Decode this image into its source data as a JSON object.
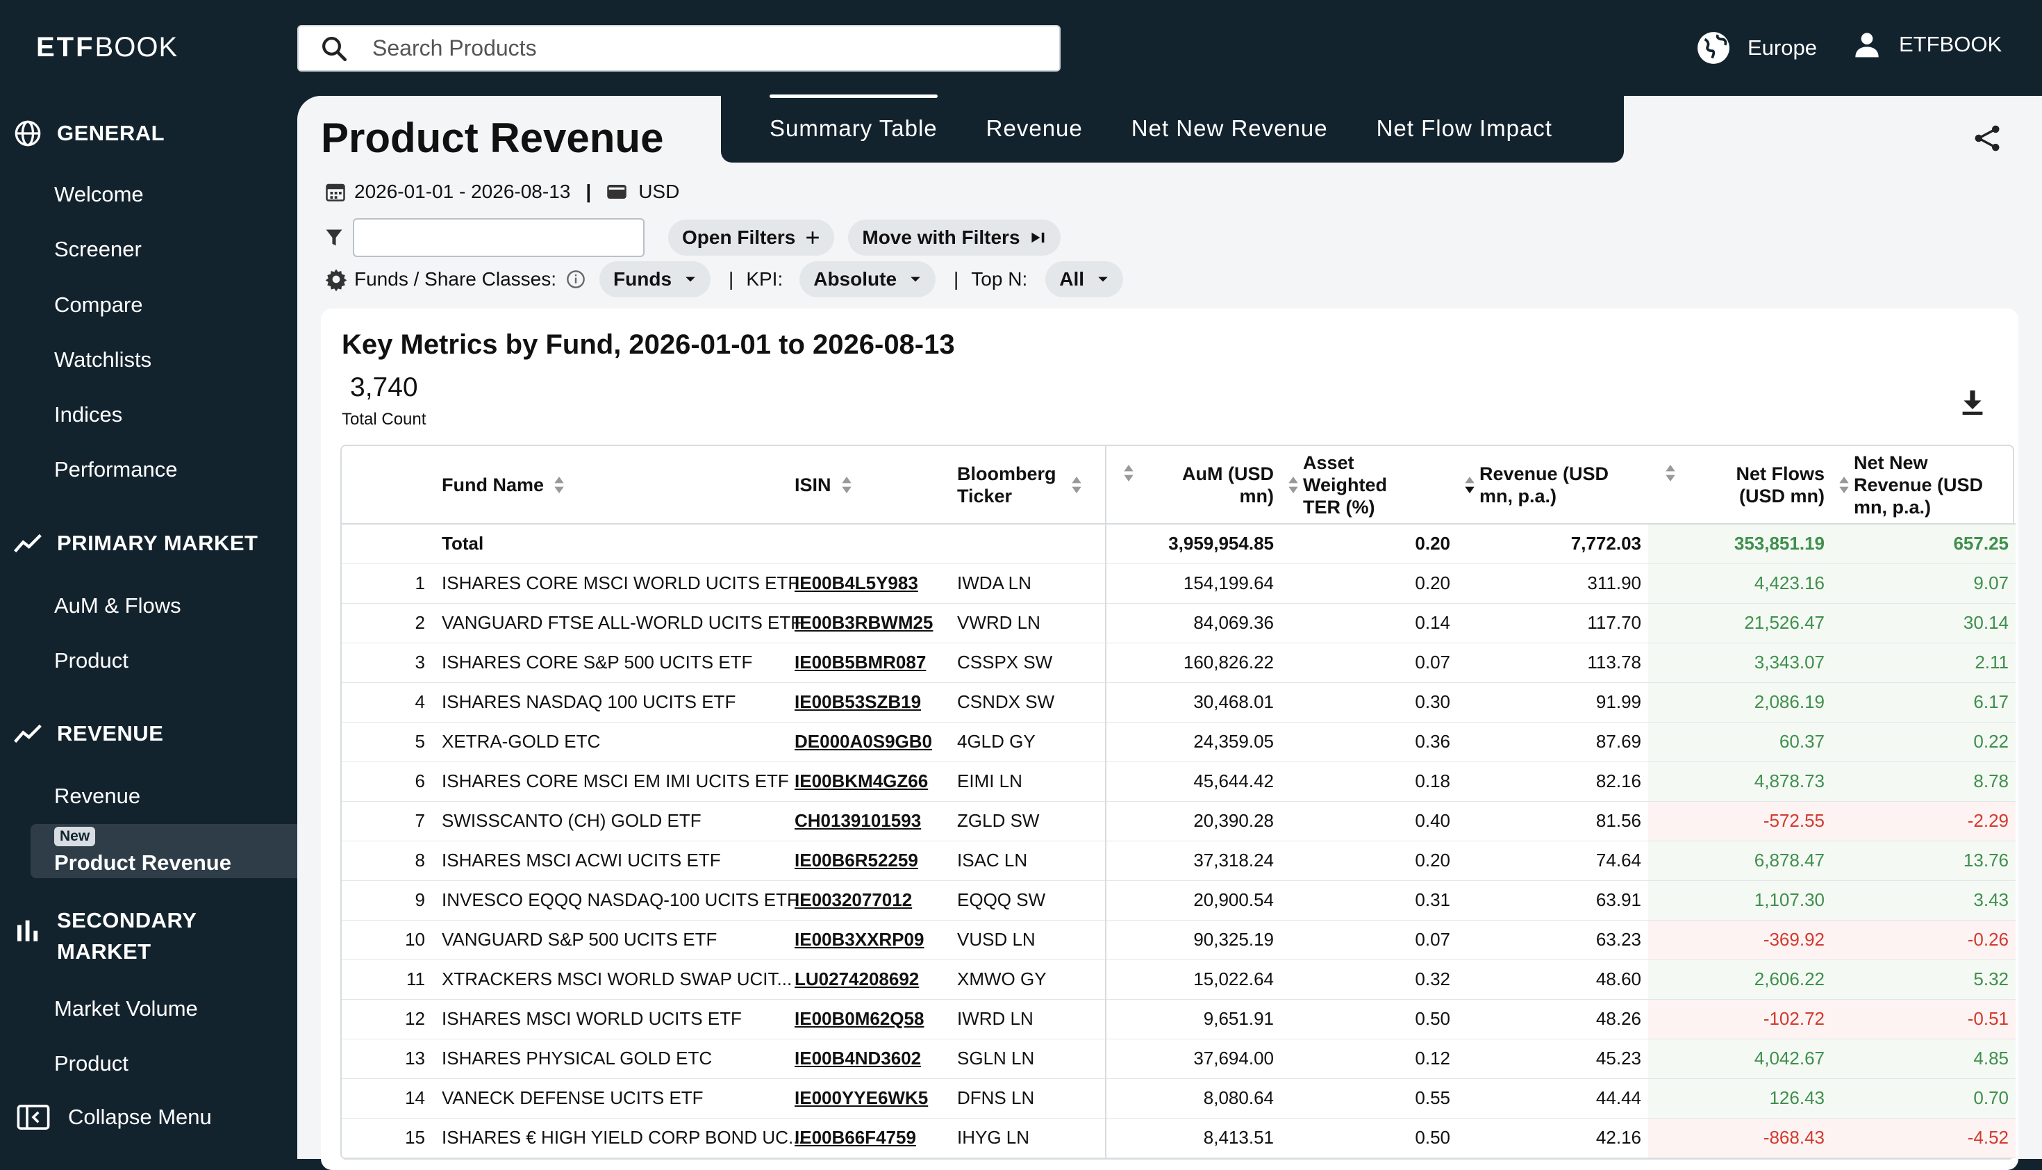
{
  "header": {
    "logo_bold": "ETF",
    "logo_rest": "BOOK",
    "search_placeholder": "Search Products",
    "region": "Europe",
    "user": "ETFBOOK"
  },
  "sidebar": {
    "general": {
      "title": "GENERAL",
      "items": [
        "Welcome",
        "Screener",
        "Compare",
        "Watchlists",
        "Indices",
        "Performance"
      ]
    },
    "primary": {
      "title": "PRIMARY MARKET",
      "items": [
        "AuM & Flows",
        "Product"
      ]
    },
    "revenue": {
      "title": "REVENUE",
      "items": [
        "Revenue"
      ],
      "active_badge": "New",
      "active_item": "Product Revenue"
    },
    "secondary": {
      "title_line1": "SECONDARY",
      "title_line2": "MARKET",
      "items": [
        "Market Volume",
        "Product"
      ]
    },
    "collapse": "Collapse Menu"
  },
  "page": {
    "title": "Product Revenue",
    "tabs": [
      "Summary Table",
      "Revenue",
      "Net New Revenue",
      "Net Flow Impact"
    ],
    "date_range": "2026-01-01 - 2026-08-13",
    "separator": "|",
    "currency": "USD",
    "open_filters": "Open Filters",
    "move_filters": "Move with Filters",
    "funds_label": "Funds / Share Classes:",
    "funds_value": "Funds",
    "kpi_label": "KPI:",
    "kpi_value": "Absolute",
    "topn_label": "Top N:",
    "topn_value": "All"
  },
  "card": {
    "title": "Key Metrics by Fund, 2026-01-01 to 2026-08-13",
    "total_count": "3,740",
    "total_count_label": "Total Count",
    "columns": {
      "fund": "Fund Name",
      "isin": "ISIN",
      "ticker": "Bloomberg Ticker",
      "aum": "AuM (USD mn)",
      "ter": "Asset Weighted TER (%)",
      "revenue": "Revenue (USD mn, p.a.)",
      "flows": "Net Flows (USD mn)",
      "nnr": "Net New Revenue (USD mn, p.a.)"
    },
    "total": {
      "label": "Total",
      "aum": "3,959,954.85",
      "ter": "0.20",
      "revenue": "7,772.03",
      "flows": "353,851.19",
      "nnr": "657.25"
    },
    "rows": [
      {
        "i": "1",
        "fund": "ISHARES CORE MSCI WORLD UCITS ETF",
        "isin": "IE00B4L5Y983",
        "ticker": "IWDA LN",
        "aum": "154,199.64",
        "ter": "0.20",
        "revenue": "311.90",
        "flows": "4,423.16",
        "nnr": "9.07",
        "neg": false
      },
      {
        "i": "2",
        "fund": "VANGUARD FTSE ALL-WORLD UCITS ETF",
        "isin": "IE00B3RBWM25",
        "ticker": "VWRD LN",
        "aum": "84,069.36",
        "ter": "0.14",
        "revenue": "117.70",
        "flows": "21,526.47",
        "nnr": "30.14",
        "neg": false
      },
      {
        "i": "3",
        "fund": "ISHARES CORE S&P 500 UCITS ETF",
        "isin": "IE00B5BMR087",
        "ticker": "CSSPX SW",
        "aum": "160,826.22",
        "ter": "0.07",
        "revenue": "113.78",
        "flows": "3,343.07",
        "nnr": "2.11",
        "neg": false
      },
      {
        "i": "4",
        "fund": "ISHARES NASDAQ 100 UCITS ETF",
        "isin": "IE00B53SZB19",
        "ticker": "CSNDX SW",
        "aum": "30,468.01",
        "ter": "0.30",
        "revenue": "91.99",
        "flows": "2,086.19",
        "nnr": "6.17",
        "neg": false
      },
      {
        "i": "5",
        "fund": "XETRA-GOLD ETC",
        "isin": "DE000A0S9GB0",
        "ticker": "4GLD GY",
        "aum": "24,359.05",
        "ter": "0.36",
        "revenue": "87.69",
        "flows": "60.37",
        "nnr": "0.22",
        "neg": false
      },
      {
        "i": "6",
        "fund": "ISHARES CORE MSCI EM IMI UCITS ETF",
        "isin": "IE00BKM4GZ66",
        "ticker": "EIMI LN",
        "aum": "45,644.42",
        "ter": "0.18",
        "revenue": "82.16",
        "flows": "4,878.73",
        "nnr": "8.78",
        "neg": false
      },
      {
        "i": "7",
        "fund": "SWISSCANTO (CH) GOLD ETF",
        "isin": "CH0139101593",
        "ticker": "ZGLD SW",
        "aum": "20,390.28",
        "ter": "0.40",
        "revenue": "81.56",
        "flows": "-572.55",
        "nnr": "-2.29",
        "neg": true
      },
      {
        "i": "8",
        "fund": "ISHARES MSCI ACWI UCITS ETF",
        "isin": "IE00B6R52259",
        "ticker": "ISAC LN",
        "aum": "37,318.24",
        "ter": "0.20",
        "revenue": "74.64",
        "flows": "6,878.47",
        "nnr": "13.76",
        "neg": false
      },
      {
        "i": "9",
        "fund": "INVESCO EQQQ NASDAQ-100 UCITS ETF",
        "isin": "IE0032077012",
        "ticker": "EQQQ SW",
        "aum": "20,900.54",
        "ter": "0.31",
        "revenue": "63.91",
        "flows": "1,107.30",
        "nnr": "3.43",
        "neg": false
      },
      {
        "i": "10",
        "fund": "VANGUARD S&P 500 UCITS ETF",
        "isin": "IE00B3XXRP09",
        "ticker": "VUSD LN",
        "aum": "90,325.19",
        "ter": "0.07",
        "revenue": "63.23",
        "flows": "-369.92",
        "nnr": "-0.26",
        "neg": true
      },
      {
        "i": "11",
        "fund": "XTRACKERS MSCI WORLD SWAP UCIT...",
        "isin": "LU0274208692",
        "ticker": "XMWO GY",
        "aum": "15,022.64",
        "ter": "0.32",
        "revenue": "48.60",
        "flows": "2,606.22",
        "nnr": "5.32",
        "neg": false
      },
      {
        "i": "12",
        "fund": "ISHARES MSCI WORLD UCITS ETF",
        "isin": "IE00B0M62Q58",
        "ticker": "IWRD LN",
        "aum": "9,651.91",
        "ter": "0.50",
        "revenue": "48.26",
        "flows": "-102.72",
        "nnr": "-0.51",
        "neg": true
      },
      {
        "i": "13",
        "fund": "ISHARES PHYSICAL GOLD ETC",
        "isin": "IE00B4ND3602",
        "ticker": "SGLN LN",
        "aum": "37,694.00",
        "ter": "0.12",
        "revenue": "45.23",
        "flows": "4,042.67",
        "nnr": "4.85",
        "neg": false
      },
      {
        "i": "14",
        "fund": "VANECK DEFENSE UCITS ETF",
        "isin": "IE000YYE6WK5",
        "ticker": "DFNS LN",
        "aum": "8,080.64",
        "ter": "0.55",
        "revenue": "44.44",
        "flows": "126.43",
        "nnr": "0.70",
        "neg": false
      },
      {
        "i": "15",
        "fund": "ISHARES € HIGH YIELD CORP BOND UC...",
        "isin": "IE00B66F4759",
        "ticker": "IHYG LN",
        "aum": "8,413.51",
        "ter": "0.50",
        "revenue": "42.16",
        "flows": "-868.43",
        "nnr": "-4.52",
        "neg": true
      }
    ]
  }
}
